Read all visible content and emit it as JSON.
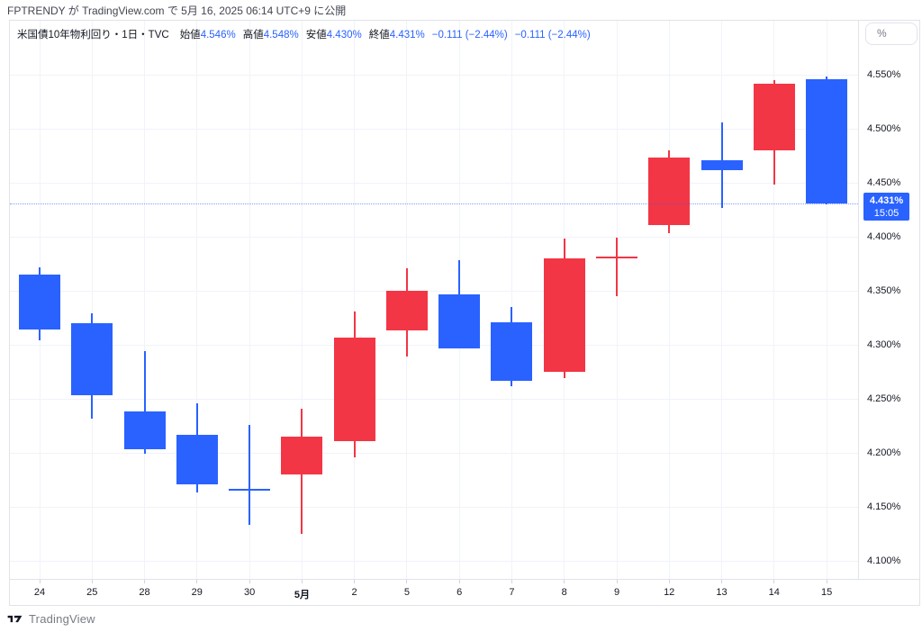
{
  "header": {
    "publish_line": "FPTRENDY が TradingView.com で 5月 16, 2025 06:14 UTC+9 に公開"
  },
  "legend": {
    "title": "米国債10年物利回り・1日・TVC",
    "fields": [
      {
        "label": "始値",
        "value": "4.546%"
      },
      {
        "label": "高値",
        "value": "4.548%"
      },
      {
        "label": "安値",
        "value": "4.430%"
      },
      {
        "label": "終値",
        "value": "4.431%"
      }
    ],
    "changes": [
      "−0.111 (−2.44%)",
      "−0.111 (−2.44%)"
    ]
  },
  "price_scale": {
    "unit_button_label": "%",
    "tick_labels": [
      "4.550%",
      "4.500%",
      "4.450%",
      "4.400%",
      "4.350%",
      "4.300%",
      "4.250%",
      "4.200%",
      "4.150%",
      "4.100%"
    ],
    "last_price_label": {
      "value": "4.431%",
      "time": "15:05",
      "background": "#2962FF"
    }
  },
  "footer": {
    "brand": "TradingView"
  },
  "chart_data": {
    "type": "candlestick",
    "title": "米国債10年物利回り",
    "interval": "1日",
    "exchange": "TVC",
    "unit": "%",
    "categories": [
      "24",
      "25",
      "28",
      "29",
      "30",
      "5月",
      "2",
      "5",
      "6",
      "7",
      "8",
      "9",
      "12",
      "13",
      "14",
      "15"
    ],
    "emphasized_category": "5月",
    "ohlc": [
      {
        "date": "24",
        "open": 4.365,
        "high": 4.372,
        "low": 4.304,
        "close": 4.314
      },
      {
        "date": "25",
        "open": 4.32,
        "high": 4.329,
        "low": 4.232,
        "close": 4.253
      },
      {
        "date": "28",
        "open": 4.238,
        "high": 4.294,
        "low": 4.199,
        "close": 4.203
      },
      {
        "date": "29",
        "open": 4.217,
        "high": 4.246,
        "low": 4.163,
        "close": 4.171
      },
      {
        "date": "30",
        "open": 4.167,
        "high": 4.226,
        "low": 4.133,
        "close": 4.165
      },
      {
        "date": "5月",
        "open": 4.18,
        "high": 4.241,
        "low": 4.125,
        "close": 4.215
      },
      {
        "date": "2",
        "open": 4.211,
        "high": 4.331,
        "low": 4.196,
        "close": 4.307
      },
      {
        "date": "5",
        "open": 4.313,
        "high": 4.371,
        "low": 4.289,
        "close": 4.35
      },
      {
        "date": "6",
        "open": 4.347,
        "high": 4.378,
        "low": 4.297,
        "close": 4.297
      },
      {
        "date": "7",
        "open": 4.321,
        "high": 4.335,
        "low": 4.262,
        "close": 4.267
      },
      {
        "date": "8",
        "open": 4.275,
        "high": 4.398,
        "low": 4.269,
        "close": 4.38
      },
      {
        "date": "9",
        "open": 4.38,
        "high": 4.399,
        "low": 4.345,
        "close": 4.382
      },
      {
        "date": "12",
        "open": 4.411,
        "high": 4.48,
        "low": 4.403,
        "close": 4.473
      },
      {
        "date": "13",
        "open": 4.471,
        "high": 4.506,
        "low": 4.427,
        "close": 4.462
      },
      {
        "date": "14",
        "open": 4.48,
        "high": 4.545,
        "low": 4.448,
        "close": 4.542
      },
      {
        "date": "15",
        "open": 4.546,
        "high": 4.548,
        "low": 4.43,
        "close": 4.431
      }
    ],
    "y_axis": {
      "max": 4.6,
      "min": 4.0833,
      "grid_step": 0.05,
      "tick_values": [
        4.55,
        4.5,
        4.45,
        4.4,
        4.35,
        4.3,
        4.25,
        4.2,
        4.15,
        4.1
      ]
    },
    "last_price": 4.431,
    "last_time": "15:05",
    "grid": true,
    "colors": {
      "up": "#F23645",
      "down": "#2962FF",
      "grid": "#F0F3FA",
      "border": "#E0E3EB",
      "axis_text": "#131722",
      "last_price_line": "#2962FF"
    }
  }
}
